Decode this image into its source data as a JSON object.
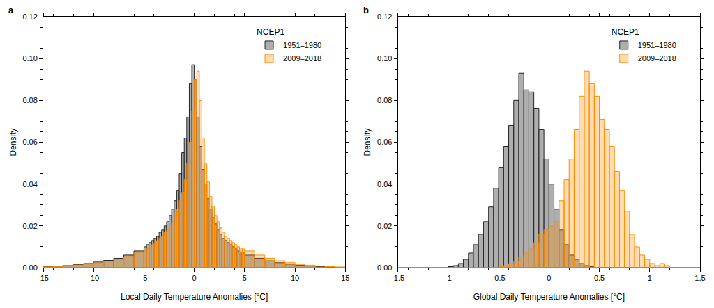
{
  "chart_data": [
    {
      "type": "histogram",
      "title": "a",
      "legend_title": "NCEP1",
      "legend": "upper right",
      "x_label": "Local Daily Temperature Anomalies [°C]",
      "y_label": "Density",
      "xlim": [
        -15,
        15
      ],
      "xticks": [
        -15,
        -10,
        -5,
        0,
        5,
        10,
        15
      ],
      "ylim": [
        0,
        0.12
      ],
      "yticks": [
        {
          "value": 0,
          "label": "0.00"
        },
        {
          "value": 0.02,
          "label": "0.02"
        },
        {
          "value": 0.04,
          "label": "0.04"
        },
        {
          "value": 0.06,
          "label": "0.06"
        },
        {
          "value": 0.08,
          "label": "0.08"
        },
        {
          "value": 0.1,
          "label": "0.10"
        },
        {
          "value": 0.12,
          "label": "0.12"
        }
      ],
      "bins": [
        -15,
        -14,
        -13,
        -12,
        -11,
        -10,
        -9,
        -8,
        -7,
        -6,
        -5,
        -4.75,
        -4.5,
        -4.25,
        -4,
        -3.75,
        -3.5,
        -3.25,
        -3,
        -2.75,
        -2.5,
        -2.25,
        -2,
        -1.75,
        -1.5,
        -1.25,
        -1,
        -0.75,
        -0.5,
        -0.25,
        0,
        0.25,
        0.5,
        0.75,
        1,
        1.25,
        1.5,
        1.75,
        2,
        2.25,
        2.5,
        2.75,
        3,
        3.25,
        3.5,
        3.75,
        4,
        4.25,
        4.5,
        4.75,
        5,
        6,
        7,
        8,
        9,
        10,
        11,
        12,
        13,
        14,
        15
      ],
      "series": [
        {
          "name": "1951–1980",
          "color": "#a0a0a0",
          "values": [
            0.0005,
            0.0007,
            0.001,
            0.0015,
            0.002,
            0.0027,
            0.0035,
            0.0045,
            0.006,
            0.008,
            0.01,
            0.011,
            0.012,
            0.013,
            0.014,
            0.015,
            0.017,
            0.018,
            0.02,
            0.022,
            0.025,
            0.028,
            0.032,
            0.037,
            0.045,
            0.055,
            0.062,
            0.072,
            0.088,
            0.097,
            0.09,
            0.072,
            0.058,
            0.047,
            0.04,
            0.033,
            0.028,
            0.024,
            0.021,
            0.018,
            0.016,
            0.014,
            0.013,
            0.012,
            0.011,
            0.01,
            0.009,
            0.008,
            0.0075,
            0.007,
            0.006,
            0.0045,
            0.0033,
            0.0024,
            0.0017,
            0.0012,
            0.0008,
            0.0005,
            0.0003,
            0.0002
          ]
        },
        {
          "name": "2009–2018",
          "color": "#ff8c00",
          "values": [
            0.0004,
            0.0006,
            0.0009,
            0.0013,
            0.0017,
            0.0023,
            0.003,
            0.004,
            0.0053,
            0.007,
            0.008,
            0.009,
            0.01,
            0.011,
            0.012,
            0.013,
            0.014,
            0.015,
            0.017,
            0.018,
            0.02,
            0.022,
            0.025,
            0.028,
            0.032,
            0.036,
            0.042,
            0.05,
            0.06,
            0.075,
            0.09,
            0.094,
            0.08,
            0.062,
            0.05,
            0.041,
            0.034,
            0.029,
            0.025,
            0.022,
            0.019,
            0.017,
            0.015,
            0.014,
            0.013,
            0.012,
            0.011,
            0.01,
            0.0095,
            0.009,
            0.008,
            0.006,
            0.0045,
            0.0033,
            0.0024,
            0.0017,
            0.0012,
            0.0008,
            0.0005,
            0.0003
          ]
        }
      ]
    },
    {
      "type": "histogram",
      "title": "b",
      "legend_title": "NCEP1",
      "legend": "upper right",
      "x_label": "Global Daily Temperature Anomalies [°C]",
      "y_label": "Density",
      "xlim": [
        -1.5,
        1.5
      ],
      "xticks": [
        -1.5,
        -1,
        -0.5,
        0,
        0.5,
        1,
        1.5
      ],
      "ylim": [
        0,
        0.12
      ],
      "yticks": [
        {
          "value": 0,
          "label": "0.00"
        },
        {
          "value": 0.02,
          "label": "0.02"
        },
        {
          "value": 0.04,
          "label": "0.04"
        },
        {
          "value": 0.06,
          "label": "0.06"
        },
        {
          "value": 0.08,
          "label": "0.08"
        },
        {
          "value": 0.1,
          "label": "0.10"
        },
        {
          "value": 0.12,
          "label": "0.12"
        }
      ],
      "bins": [
        -1.5,
        -1.45,
        -1.4,
        -1.35,
        -1.3,
        -1.25,
        -1.2,
        -1.15,
        -1.1,
        -1.05,
        -1,
        -0.95,
        -0.9,
        -0.85,
        -0.8,
        -0.75,
        -0.7,
        -0.65,
        -0.6,
        -0.55,
        -0.5,
        -0.45,
        -0.4,
        -0.35,
        -0.3,
        -0.25,
        -0.2,
        -0.15,
        -0.1,
        -0.05,
        0,
        0.05,
        0.1,
        0.15,
        0.2,
        0.25,
        0.3,
        0.35,
        0.4,
        0.45,
        0.5,
        0.55,
        0.6,
        0.65,
        0.7,
        0.75,
        0.8,
        0.85,
        0.9,
        0.95,
        1,
        1.05,
        1.1,
        1.15,
        1.2,
        1.25,
        1.3,
        1.35,
        1.4,
        1.45,
        1.5
      ],
      "series": [
        {
          "name": "1951–1980",
          "color": "#a0a0a0",
          "values": [
            0,
            0,
            0,
            0,
            0,
            0,
            0,
            0,
            0,
            0,
            0.0005,
            0.001,
            0.002,
            0.004,
            0.007,
            0.011,
            0.016,
            0.022,
            0.029,
            0.038,
            0.048,
            0.058,
            0.068,
            0.08,
            0.093,
            0.085,
            0.084,
            0.076,
            0.066,
            0.052,
            0.04,
            0.028,
            0.018,
            0.011,
            0.006,
            0.004,
            0.002,
            0.001,
            0.0005,
            0,
            0,
            0,
            0,
            0,
            0,
            0,
            0,
            0,
            0,
            0,
            0,
            0,
            0,
            0,
            0,
            0,
            0,
            0,
            0,
            0
          ]
        },
        {
          "name": "2009–2018",
          "color": "#ff8c00",
          "values": [
            0,
            0,
            0,
            0,
            0,
            0,
            0,
            0,
            0,
            0,
            0,
            0,
            0,
            0,
            0,
            0,
            0,
            0,
            0,
            0,
            0.0005,
            0.001,
            0.002,
            0.003,
            0.005,
            0.007,
            0.009,
            0.012,
            0.016,
            0.018,
            0.02,
            0.022,
            0.032,
            0.042,
            0.052,
            0.066,
            0.082,
            0.094,
            0.088,
            0.082,
            0.071,
            0.066,
            0.058,
            0.046,
            0.037,
            0.027,
            0.016,
            0.01,
            0.006,
            0.004,
            0.002,
            0.001,
            0.002,
            0.001,
            0,
            0,
            0,
            0,
            0,
            0
          ]
        }
      ]
    }
  ]
}
